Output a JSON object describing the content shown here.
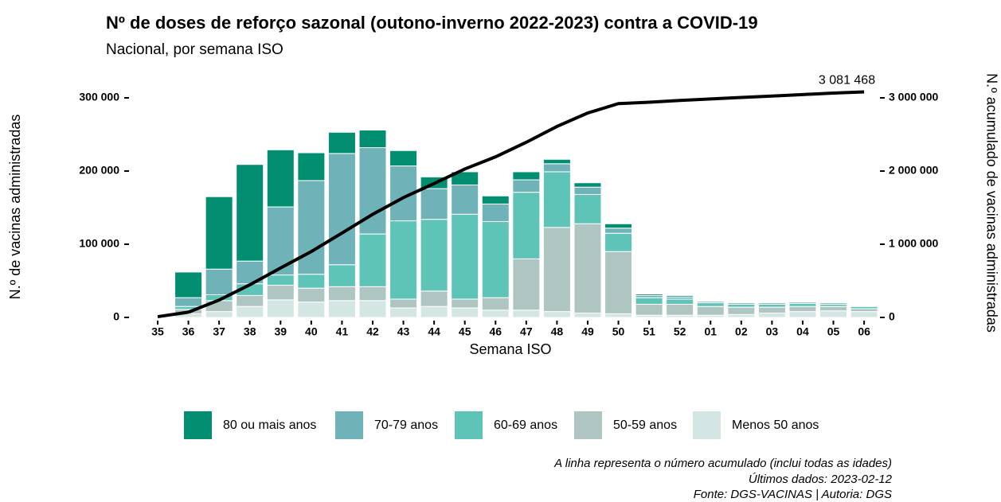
{
  "chart_data": {
    "type": "bar",
    "title": "Nº de doses de reforço sazonal (outono-inverno 2022-2023) contra a COVID-19",
    "subtitle": "Nacional, por semana ISO",
    "x_label": "Semana ISO",
    "y_label": "N.º de vacinas administradas",
    "y2_label": "N.º acumulado de vacinas administradas",
    "annotations": [
      "A linha representa o número acumulado (inclui todas as idades)",
      "Últimos dados: 2023-02-12",
      "Fonte: DGS-VACINAS | Autoria: DGS"
    ],
    "categories": [
      "35",
      "36",
      "37",
      "38",
      "39",
      "40",
      "41",
      "42",
      "43",
      "44",
      "45",
      "46",
      "47",
      "48",
      "49",
      "50",
      "51",
      "52",
      "01",
      "02",
      "03",
      "04",
      "05",
      "06"
    ],
    "stacked": true,
    "legend": "bottom",
    "ylim": [
      0,
      310000
    ],
    "yticks": [
      {
        "value": 0,
        "label": "0"
      },
      {
        "value": 100000,
        "label": "100 000"
      },
      {
        "value": 200000,
        "label": "200 000"
      },
      {
        "value": 300000,
        "label": "300 000"
      }
    ],
    "y2lim": [
      0,
      3100000
    ],
    "y2ticks": [
      {
        "value": 0,
        "label": "0"
      },
      {
        "value": 1000000,
        "label": "1 000 000"
      },
      {
        "value": 2000000,
        "label": "2 000 000"
      },
      {
        "value": 3000000,
        "label": "3 000 000"
      }
    ],
    "series": [
      {
        "name": "80 ou mais anos",
        "color": "#018e71",
        "values": [
          null,
          35000,
          99000,
          132000,
          78000,
          38000,
          29000,
          24000,
          21000,
          16000,
          18000,
          11000,
          11000,
          6000,
          6000,
          6000,
          2000,
          2000,
          1000,
          1000,
          1000,
          1000,
          1000,
          1000
        ]
      },
      {
        "name": "70-79 anos",
        "color": "#6fb3b8",
        "values": [
          null,
          12000,
          35000,
          31000,
          93000,
          128000,
          152000,
          118000,
          75000,
          42000,
          40000,
          24000,
          17000,
          11000,
          10000,
          7000,
          3000,
          3000,
          2000,
          2000,
          2000,
          2000,
          2000,
          1000
        ]
      },
      {
        "name": "60-69 anos",
        "color": "#5fc4b8",
        "values": [
          null,
          4000,
          8000,
          16000,
          14000,
          19000,
          30000,
          72000,
          107000,
          98000,
          116000,
          104000,
          91000,
          76000,
          40000,
          25000,
          9000,
          7000,
          5000,
          4000,
          4000,
          4000,
          3000,
          3000
        ]
      },
      {
        "name": "50-59 anos",
        "color": "#aec5c1",
        "values": [
          null,
          6000,
          15000,
          15000,
          20000,
          19000,
          19000,
          19000,
          12000,
          21000,
          12000,
          17000,
          70000,
          115000,
          122000,
          85000,
          15000,
          15000,
          12000,
          10000,
          8000,
          7000,
          6000,
          4000
        ]
      },
      {
        "name": "Menos 50 anos",
        "color": "#d4e6e4",
        "values": [
          null,
          5000,
          8000,
          15000,
          24000,
          21000,
          23000,
          23000,
          13000,
          15000,
          13000,
          10000,
          10000,
          8000,
          6000,
          5000,
          3000,
          3000,
          3000,
          4000,
          6000,
          8000,
          9000,
          8000
        ]
      },
      {
        "type": "line",
        "axis": "y2",
        "color": "#000000",
        "values": [
          10000,
          72000,
          237000,
          446000,
          675000,
          900000,
          1153000,
          1409000,
          1637000,
          1829000,
          2028000,
          2194000,
          2393000,
          2609000,
          2793000,
          2921000,
          2940000,
          2965000,
          2985000,
          3005000,
          3025000,
          3045000,
          3065000,
          3081468
        ],
        "value_labels": [
          null,
          null,
          null,
          null,
          null,
          null,
          null,
          null,
          null,
          null,
          null,
          null,
          null,
          null,
          null,
          null,
          null,
          null,
          null,
          null,
          null,
          null,
          null,
          "3 081 468"
        ]
      }
    ]
  }
}
